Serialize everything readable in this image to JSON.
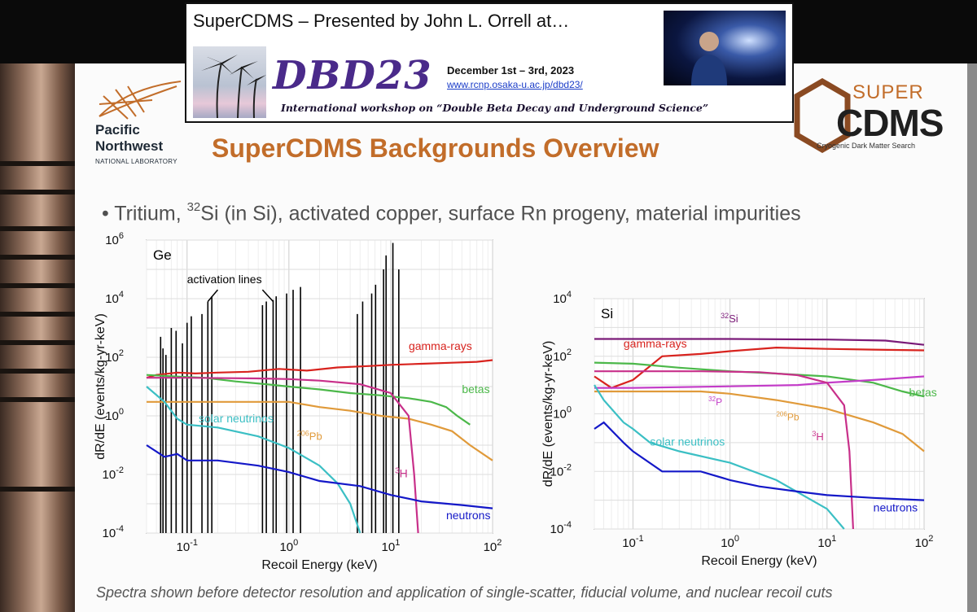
{
  "banner": {
    "title": "SuperCDMS  – Presented by John L. Orrell at…",
    "event": "DBD23",
    "dates": "December 1st – 3rd, 2023",
    "url": "www.rcnp.osaka-u.ac.jp/dbd23/",
    "workshop": "International workshop on “Double Beta Decay and Underground Science”"
  },
  "pnnl": {
    "line1": "Pacific",
    "line2": "Northwest",
    "line3": "NATIONAL LABORATORY"
  },
  "supercdms_logo": {
    "super": "SUPER",
    "cdms": "CDMS",
    "sub": "Cryogenic Dark Matter Search"
  },
  "slide": {
    "title": "SuperCDMS Backgrounds Overview",
    "bullet": {
      "a": "Tritium, ",
      "sup": "32",
      "b": "Si (in Si), activated copper, surface Rn progeny, material impurities"
    },
    "caption": "Spectra shown before detector resolution and application of single-scatter, fiducial volume, and nuclear recoil cuts"
  },
  "colors": {
    "accent": "#c26d2a",
    "gamma": "#d8231e",
    "betas": "#4cb84a",
    "pb206": "#e09a3a",
    "tritium": "#c8308a",
    "solar": "#3bbfc4",
    "neutrons": "#1418c8",
    "si32": "#7a1a78",
    "p32": "#c33cc8",
    "activation": "#000000"
  },
  "chart_data": [
    {
      "type": "line",
      "panel": "Ge",
      "xlabel": "Recoil Energy (keV)",
      "ylabel": "dR/dE (events/kg-yr-keV)",
      "xscale": "log",
      "yscale": "log",
      "xlim": [
        0.04,
        100
      ],
      "ylim": [
        0.0001,
        1000000
      ],
      "xticks": [
        "10^-1",
        "10^0",
        "10^1",
        "10^2"
      ],
      "yticks": [
        "10^-4",
        "10^-2",
        "10^0",
        "10^2",
        "10^4",
        "10^6"
      ],
      "grid": true,
      "annotations": [
        "activation lines",
        "gamma-rays",
        "betas",
        "206Pb",
        "solar neutrinos",
        "3H",
        "neutrons"
      ],
      "activation_lines": [
        {
          "x": 0.055,
          "y": 500
        },
        {
          "x": 0.058,
          "y": 200
        },
        {
          "x": 0.062,
          "y": 120
        },
        {
          "x": 0.07,
          "y": 1000
        },
        {
          "x": 0.078,
          "y": 800
        },
        {
          "x": 0.09,
          "y": 300
        },
        {
          "x": 0.1,
          "y": 1500
        },
        {
          "x": 0.11,
          "y": 2500
        },
        {
          "x": 0.14,
          "y": 3000
        },
        {
          "x": 0.16,
          "y": 8000
        },
        {
          "x": 0.175,
          "y": 12000
        },
        {
          "x": 0.55,
          "y": 6000
        },
        {
          "x": 0.6,
          "y": 8000
        },
        {
          "x": 0.7,
          "y": 9000
        },
        {
          "x": 0.75,
          "y": 12000
        },
        {
          "x": 0.95,
          "y": 15000
        },
        {
          "x": 1.1,
          "y": 20000
        },
        {
          "x": 1.3,
          "y": 25000
        },
        {
          "x": 4.7,
          "y": 3000
        },
        {
          "x": 5.3,
          "y": 8000
        },
        {
          "x": 6.5,
          "y": 15000
        },
        {
          "x": 7.1,
          "y": 30000
        },
        {
          "x": 8.5,
          "y": 100000
        },
        {
          "x": 9.0,
          "y": 300000
        },
        {
          "x": 10.5,
          "y": 800000
        },
        {
          "x": 12.0,
          "y": 100000
        }
      ],
      "series": [
        {
          "name": "gamma-rays",
          "x": [
            0.04,
            0.05,
            0.08,
            0.12,
            0.2,
            0.4,
            0.8,
            1.5,
            3,
            6,
            10,
            20,
            40,
            70,
            100
          ],
          "y": [
            20,
            25,
            30,
            28,
            30,
            32,
            40,
            35,
            45,
            50,
            55,
            60,
            65,
            70,
            80
          ]
        },
        {
          "name": "betas",
          "x": [
            0.04,
            0.08,
            0.15,
            0.3,
            0.6,
            1,
            2,
            4,
            8,
            15,
            25,
            35,
            45,
            60
          ],
          "y": [
            25,
            22,
            20,
            15,
            12,
            10,
            8,
            6,
            5,
            4,
            3,
            2,
            1,
            0.5
          ]
        },
        {
          "name": "206Pb",
          "x": [
            0.04,
            0.1,
            0.3,
            1,
            2,
            4,
            8,
            15,
            25,
            40,
            60,
            100
          ],
          "y": [
            3,
            3,
            3,
            3,
            2,
            1.5,
            1,
            0.8,
            0.5,
            0.3,
            0.1,
            0.03
          ]
        },
        {
          "name": "3H",
          "x": [
            0.04,
            0.1,
            0.5,
            1,
            2,
            5,
            10,
            15,
            17,
            18.6
          ],
          "y": [
            20,
            20,
            19,
            18,
            16,
            12,
            6,
            1,
            0.01,
            0.0001
          ]
        },
        {
          "name": "solar neutrinos",
          "x": [
            0.04,
            0.06,
            0.08,
            0.1,
            0.2,
            0.5,
            1,
            2,
            3,
            4,
            5
          ],
          "y": [
            10,
            3,
            0.8,
            0.5,
            0.4,
            0.2,
            0.08,
            0.02,
            0.005,
            0.001,
            0.0001
          ]
        },
        {
          "name": "neutrons",
          "x": [
            0.04,
            0.06,
            0.08,
            0.1,
            0.2,
            0.5,
            1,
            2,
            5,
            10,
            20,
            50,
            100
          ],
          "y": [
            0.1,
            0.04,
            0.05,
            0.03,
            0.03,
            0.02,
            0.012,
            0.006,
            0.004,
            0.002,
            0.0012,
            0.0009,
            0.0007
          ]
        }
      ]
    },
    {
      "type": "line",
      "panel": "Si",
      "xlabel": "Recoil Energy (keV)",
      "ylabel": "dR/dE (events/kg-yr-keV)",
      "xscale": "log",
      "yscale": "log",
      "xlim": [
        0.04,
        100
      ],
      "ylim": [
        0.0001,
        10000
      ],
      "xticks": [
        "10^-1",
        "10^0",
        "10^1",
        "10^2"
      ],
      "yticks": [
        "10^-4",
        "10^-2",
        "10^0",
        "10^2",
        "10^4"
      ],
      "grid": true,
      "annotations": [
        "32Si",
        "gamma-rays",
        "32P",
        "betas",
        "206Pb",
        "solar neutrinos",
        "3H",
        "neutrons"
      ],
      "series": [
        {
          "name": "32Si",
          "x": [
            0.04,
            1,
            10,
            40,
            100
          ],
          "y": [
            400,
            400,
            380,
            350,
            250
          ]
        },
        {
          "name": "gamma-rays",
          "x": [
            0.04,
            0.06,
            0.1,
            0.2,
            0.5,
            1,
            3,
            10,
            30,
            100
          ],
          "y": [
            20,
            8,
            15,
            100,
            120,
            150,
            200,
            180,
            170,
            160
          ]
        },
        {
          "name": "betas",
          "x": [
            0.04,
            0.1,
            0.3,
            1,
            3,
            10,
            30,
            60,
            100
          ],
          "y": [
            60,
            55,
            40,
            30,
            25,
            20,
            12,
            6,
            4
          ]
        },
        {
          "name": "32P",
          "x": [
            0.04,
            0.1,
            1,
            5,
            10,
            30,
            100
          ],
          "y": [
            8,
            8,
            9,
            10,
            12,
            15,
            20
          ]
        },
        {
          "name": "206Pb",
          "x": [
            0.04,
            0.1,
            0.5,
            1,
            3,
            10,
            30,
            60,
            100
          ],
          "y": [
            6,
            6,
            6,
            5,
            3,
            1.5,
            0.5,
            0.2,
            0.05
          ]
        },
        {
          "name": "3H",
          "x": [
            0.04,
            0.5,
            2,
            5,
            10,
            15,
            17,
            18.6
          ],
          "y": [
            30,
            30,
            28,
            22,
            12,
            2,
            0.05,
            0.0001
          ]
        },
        {
          "name": "solar neutrinos",
          "x": [
            0.04,
            0.05,
            0.08,
            0.1,
            0.15,
            0.3,
            1,
            3,
            10,
            15
          ],
          "y": [
            10,
            3,
            0.5,
            0.3,
            0.1,
            0.05,
            0.02,
            0.005,
            0.0005,
            0.0001
          ]
        },
        {
          "name": "neutrons",
          "x": [
            0.04,
            0.05,
            0.08,
            0.1,
            0.2,
            0.5,
            1,
            2,
            5,
            10,
            30,
            100
          ],
          "y": [
            0.3,
            0.5,
            0.1,
            0.05,
            0.01,
            0.01,
            0.005,
            0.003,
            0.002,
            0.0015,
            0.0012,
            0.001
          ]
        }
      ]
    }
  ]
}
